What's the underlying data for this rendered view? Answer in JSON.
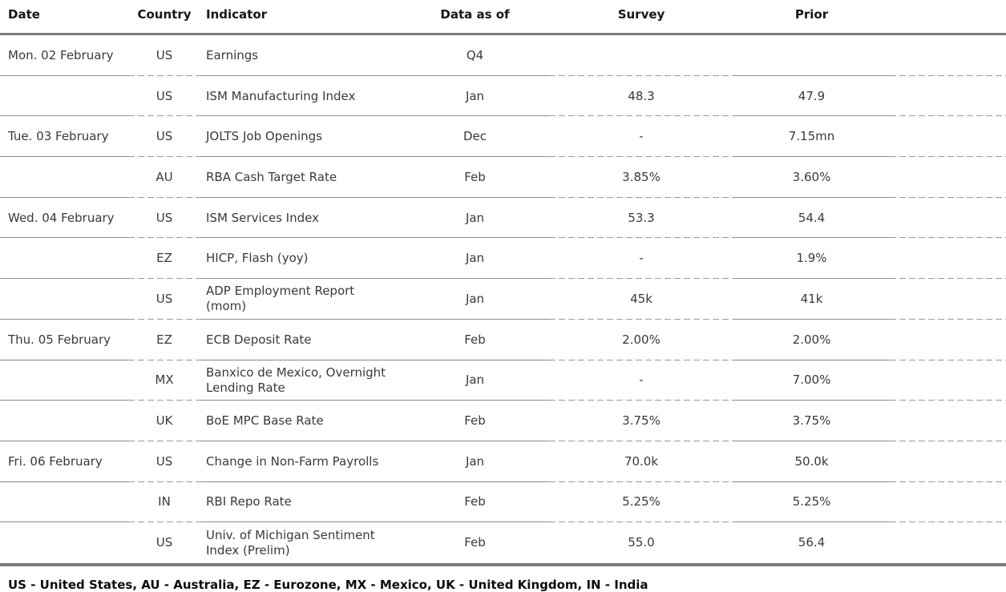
{
  "table": {
    "columns": {
      "date": "Date",
      "country": "Country",
      "indicator": "Indicator",
      "data_as_of": "Data as of",
      "survey": "Survey",
      "prior": "Prior"
    },
    "rows": [
      {
        "date": "Mon. 02 February",
        "country": "US",
        "indicator": "Earnings",
        "data_as_of": "Q4",
        "survey": "",
        "prior": ""
      },
      {
        "date": "",
        "country": "US",
        "indicator": "ISM Manufacturing Index",
        "data_as_of": "Jan",
        "survey": "48.3",
        "prior": "47.9"
      },
      {
        "date": "Tue. 03 February",
        "country": "US",
        "indicator": "JOLTS Job Openings",
        "data_as_of": "Dec",
        "survey": "-",
        "prior": "7.15mn"
      },
      {
        "date": "",
        "country": "AU",
        "indicator": "RBA Cash Target Rate",
        "data_as_of": "Feb",
        "survey": "3.85%",
        "prior": "3.60%"
      },
      {
        "date": "Wed. 04 February",
        "country": "US",
        "indicator": "ISM Services Index",
        "data_as_of": "Jan",
        "survey": "53.3",
        "prior": "54.4"
      },
      {
        "date": "",
        "country": "EZ",
        "indicator": "HICP, Flash (yoy)",
        "data_as_of": "Jan",
        "survey": "-",
        "prior": "1.9%"
      },
      {
        "date": "",
        "country": "US",
        "indicator": "ADP Employment Report\n(mom)",
        "data_as_of": "Jan",
        "survey": "45k",
        "prior": "41k"
      },
      {
        "date": "Thu. 05 February",
        "country": "EZ",
        "indicator": "ECB Deposit Rate",
        "data_as_of": "Feb",
        "survey": "2.00%",
        "prior": "2.00%"
      },
      {
        "date": "",
        "country": "MX",
        "indicator": "Banxico de Mexico, Overnight\nLending Rate",
        "data_as_of": "Jan",
        "survey": "-",
        "prior": "7.00%"
      },
      {
        "date": "",
        "country": "UK",
        "indicator": "BoE MPC Base Rate",
        "data_as_of": "Feb",
        "survey": "3.75%",
        "prior": "3.75%"
      },
      {
        "date": "Fri. 06 February",
        "country": "US",
        "indicator": "Change in Non-Farm Payrolls",
        "data_as_of": "Jan",
        "survey": "70.0k",
        "prior": "50.0k"
      },
      {
        "date": "",
        "country": "IN",
        "indicator": "RBI Repo Rate",
        "data_as_of": "Feb",
        "survey": "5.25%",
        "prior": "5.25%"
      },
      {
        "date": "",
        "country": "US",
        "indicator": "Univ. of Michigan Sentiment\nIndex (Prelim)",
        "data_as_of": "Feb",
        "survey": "55.0",
        "prior": "56.4"
      }
    ]
  },
  "footer": {
    "legend": "US - United States, AU - Australia, EZ - Eurozone, MX - Mexico, UK - United Kingdom, IN - India"
  },
  "colors": {
    "rule_thick": "#7b7b7b",
    "rule_solid": "#8a8a8a",
    "rule_dashed": "#9a9a9a",
    "text_body": "#3a3a3a",
    "text_header": "#161616"
  }
}
